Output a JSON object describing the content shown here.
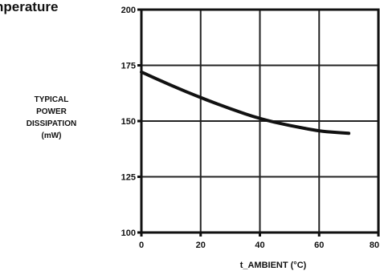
{
  "page": {
    "title_fragment": "nperature"
  },
  "chart_data": {
    "type": "line",
    "title": "",
    "xlabel": "t_AMBIENT (°C)",
    "ylabel_lines": [
      "TYPICAL",
      "POWER",
      "DISSIPATION",
      "(mW)"
    ],
    "xlim": [
      0,
      80
    ],
    "ylim": [
      100,
      200
    ],
    "x_ticks": [
      0,
      20,
      40,
      60,
      80
    ],
    "x_tick_labels": [
      "0",
      "20",
      "40",
      "60",
      "80"
    ],
    "y_ticks": [
      100,
      125,
      150,
      175,
      200
    ],
    "y_tick_labels": [
      "100",
      "125",
      "150",
      "175",
      "200"
    ],
    "grid": true,
    "series": [
      {
        "x": [
          0,
          10,
          20,
          30,
          40,
          50,
          60,
          65,
          70
        ],
        "y": [
          172,
          166,
          160.5,
          155.5,
          151,
          148,
          145.5,
          145,
          144.5
        ]
      }
    ],
    "colors": {
      "line": "#111111",
      "grid": "#222222",
      "frame": "#111111"
    }
  }
}
